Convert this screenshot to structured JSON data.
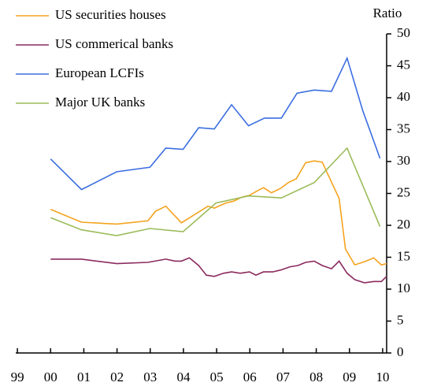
{
  "chart_data": {
    "type": "line",
    "y_label": "Ratio",
    "xlim": [
      1998.95,
      2010.12
    ],
    "xticks": [
      {
        "value": 1999,
        "label": "99"
      },
      {
        "value": 2000,
        "label": "00"
      },
      {
        "value": 2001,
        "label": "01"
      },
      {
        "value": 2002,
        "label": "02"
      },
      {
        "value": 2003,
        "label": "03"
      },
      {
        "value": 2004,
        "label": "04"
      },
      {
        "value": 2005,
        "label": "05"
      },
      {
        "value": 2006,
        "label": "06"
      },
      {
        "value": 2007,
        "label": "07"
      },
      {
        "value": 2008,
        "label": "08"
      },
      {
        "value": 2009,
        "label": "09"
      },
      {
        "value": 2010,
        "label": "10"
      }
    ],
    "ylim": [
      0,
      50
    ],
    "yticks": [
      0,
      5,
      10,
      15,
      20,
      25,
      30,
      35,
      40,
      45,
      50
    ],
    "legend_position": "top-left",
    "series": [
      {
        "name": "US securities houses",
        "color": "#f4a31e",
        "x": [
          2000.0,
          2000.93,
          2001.99,
          2002.93,
          2003.16,
          2003.47,
          2003.94,
          2004.74,
          2004.93,
          2005.28,
          2005.52,
          2005.75,
          2005.99,
          2006.22,
          2006.41,
          2006.65,
          2006.93,
          2007.16,
          2007.4,
          2007.68,
          2007.94,
          2008.18,
          2008.69,
          2008.88,
          2009.16,
          2009.45,
          2009.73,
          2009.96,
          2010.12
        ],
        "values": [
          22.5,
          20.5,
          20.2,
          20.7,
          22.2,
          23.0,
          20.4,
          23.0,
          22.7,
          23.5,
          23.8,
          24.4,
          24.7,
          25.4,
          25.9,
          25.1,
          25.8,
          26.7,
          27.3,
          29.8,
          30.1,
          29.9,
          24.2,
          16.3,
          13.8,
          14.3,
          14.9,
          13.8,
          14.0
        ]
      },
      {
        "name": "US commerical banks",
        "color": "#8b2a5e",
        "x": [
          2000.0,
          2000.93,
          2001.99,
          2002.93,
          2003.47,
          2003.75,
          2003.94,
          2004.18,
          2004.46,
          2004.69,
          2004.93,
          2005.21,
          2005.45,
          2005.71,
          2005.99,
          2006.18,
          2006.41,
          2006.69,
          2006.93,
          2007.21,
          2007.45,
          2007.68,
          2007.94,
          2008.18,
          2008.46,
          2008.69,
          2008.93,
          2009.16,
          2009.45,
          2009.73,
          2009.96,
          2010.12
        ],
        "values": [
          14.7,
          14.7,
          14.0,
          14.2,
          14.7,
          14.4,
          14.4,
          14.9,
          13.7,
          12.2,
          12.0,
          12.5,
          12.7,
          12.5,
          12.7,
          12.2,
          12.7,
          12.7,
          13.0,
          13.5,
          13.7,
          14.2,
          14.4,
          13.7,
          13.2,
          14.4,
          12.5,
          11.5,
          11.0,
          11.2,
          11.2,
          12.0
        ]
      },
      {
        "name": "European LCFIs",
        "color": "#3b6ee0",
        "x": [
          2000.0,
          2000.93,
          2001.99,
          2002.99,
          2003.47,
          2003.99,
          2004.46,
          2004.93,
          2005.45,
          2005.96,
          2006.44,
          2006.95,
          2007.42,
          2007.94,
          2008.46,
          2008.93,
          2009.4,
          2009.92
        ],
        "values": [
          30.4,
          25.6,
          28.4,
          29.1,
          32.1,
          31.9,
          35.3,
          35.1,
          38.9,
          35.6,
          36.8,
          36.8,
          40.7,
          41.2,
          41.0,
          46.2,
          38.0,
          30.5
        ]
      },
      {
        "name": "Major UK banks",
        "color": "#9bbb59",
        "x": [
          2000.0,
          2000.93,
          2001.99,
          2002.99,
          2003.99,
          2004.98,
          2005.96,
          2006.95,
          2007.94,
          2008.93,
          2009.92
        ],
        "values": [
          21.2,
          19.3,
          18.4,
          19.5,
          19.0,
          23.5,
          24.6,
          24.3,
          26.7,
          32.1,
          19.8
        ]
      }
    ]
  }
}
